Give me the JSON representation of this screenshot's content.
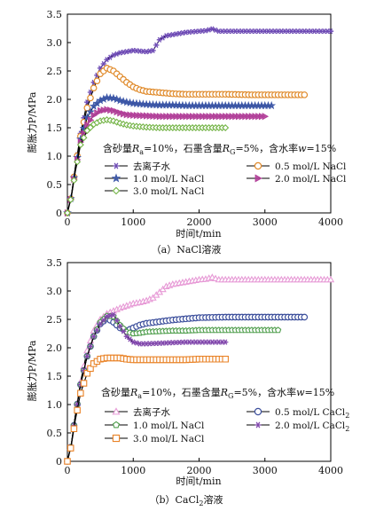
{
  "colors": {
    "deion_a": "#6e4bb5",
    "nacl05_a": "#e08a2a",
    "nacl10_a": "#3c57a8",
    "nacl20_a": "#b3409a",
    "nacl30_a": "#74b447",
    "deion_b": "#e79ad6",
    "cacl05_b": "#3c4f9c",
    "nacl10_b": "#4f9e4c",
    "cacl20_b": "#8248ad",
    "nacl30_b": "#e98226",
    "black": "#000000"
  },
  "chart_data": [
    {
      "type": "line",
      "caption_prefix": "（a）",
      "caption": "NaCl溶液",
      "xlabel": "时间t/min",
      "ylabel": "膨胀力P/MPa",
      "xlim": [
        0,
        4000
      ],
      "ylim": [
        0,
        3.5
      ],
      "xticks": [
        "0",
        "1000",
        "2000",
        "3000",
        "4000"
      ],
      "yticks": [
        "0",
        "0.5",
        "1.0",
        "1.5",
        "2.0",
        "2.5",
        "3.0",
        "3.5"
      ],
      "grid": false,
      "annotation": "含砂量Ra=10%，石墨含量RG=5%，含水率w=15%",
      "legend": [
        {
          "label": "去离子水",
          "marker": "star",
          "color": "#6e4bb5"
        },
        {
          "label": "0.5 mol/L NaCl",
          "marker": "circle",
          "color": "#e08a2a"
        },
        {
          "label": "1.0 mol/L NaCl",
          "marker": "star5",
          "color": "#3c57a8"
        },
        {
          "label": "2.0 mol/L NaCl",
          "marker": "tri-right",
          "color": "#b3409a"
        },
        {
          "label": "3.0 mol/L NaCl",
          "marker": "diamond",
          "color": "#74b447"
        }
      ],
      "series": [
        {
          "name": "去离子水",
          "x": [
            0,
            60,
            120,
            200,
            300,
            400,
            500,
            600,
            700,
            800,
            900,
            1000,
            1100,
            1200,
            1300,
            1400,
            1500,
            1600,
            1700,
            1800,
            1900,
            2000,
            2100,
            2200,
            2300,
            2500,
            2800,
            3200,
            3600,
            4000
          ],
          "y": [
            0,
            0.3,
            0.8,
            1.4,
            1.95,
            2.3,
            2.55,
            2.7,
            2.78,
            2.82,
            2.84,
            2.86,
            2.85,
            2.84,
            2.86,
            3.05,
            3.12,
            3.14,
            3.16,
            3.18,
            3.19,
            3.2,
            3.21,
            3.24,
            3.2,
            3.2,
            3.2,
            3.2,
            3.2,
            3.2
          ]
        },
        {
          "name": "0.5 mol/L NaCl",
          "x": [
            0,
            60,
            120,
            200,
            300,
            400,
            500,
            600,
            700,
            800,
            900,
            1000,
            1100,
            1200,
            1400,
            1600,
            1800,
            2000,
            2400,
            2800,
            3200,
            3600
          ],
          "y": [
            0,
            0.3,
            0.8,
            1.35,
            1.85,
            2.2,
            2.45,
            2.55,
            2.5,
            2.4,
            2.3,
            2.22,
            2.17,
            2.14,
            2.12,
            2.1,
            2.09,
            2.09,
            2.09,
            2.08,
            2.08,
            2.08
          ]
        },
        {
          "name": "1.0 mol/L NaCl",
          "x": [
            0,
            60,
            120,
            200,
            300,
            400,
            500,
            600,
            700,
            800,
            900,
            1000,
            1200,
            1400,
            1600,
            1800,
            2000,
            2400,
            2800,
            3100
          ],
          "y": [
            0,
            0.3,
            0.78,
            1.3,
            1.68,
            1.88,
            1.98,
            2.03,
            2.02,
            1.98,
            1.95,
            1.93,
            1.91,
            1.9,
            1.9,
            1.89,
            1.89,
            1.89,
            1.89,
            1.89
          ]
        },
        {
          "name": "2.0 mol/L NaCl",
          "x": [
            0,
            60,
            120,
            200,
            300,
            400,
            500,
            600,
            700,
            800,
            900,
            1000,
            1200,
            1400,
            1600,
            1800,
            2000,
            2400,
            2800,
            3000
          ],
          "y": [
            0,
            0.28,
            0.75,
            1.25,
            1.55,
            1.72,
            1.8,
            1.82,
            1.8,
            1.76,
            1.73,
            1.72,
            1.71,
            1.7,
            1.7,
            1.7,
            1.7,
            1.7,
            1.7,
            1.7
          ]
        },
        {
          "name": "3.0 mol/L NaCl",
          "x": [
            0,
            60,
            120,
            200,
            300,
            400,
            500,
            600,
            700,
            800,
            900,
            1000,
            1200,
            1400,
            1600,
            1800,
            2000,
            2200,
            2400
          ],
          "y": [
            0,
            0.28,
            0.72,
            1.2,
            1.45,
            1.56,
            1.62,
            1.64,
            1.62,
            1.58,
            1.55,
            1.53,
            1.51,
            1.5,
            1.5,
            1.5,
            1.5,
            1.5,
            1.5
          ]
        }
      ]
    },
    {
      "type": "line",
      "caption_prefix": "（b）",
      "caption": "CaCl2溶液",
      "xlabel": "时间t/min",
      "ylabel": "膨胀力P/MPa",
      "xlim": [
        0,
        4000
      ],
      "ylim": [
        0,
        3.5
      ],
      "xticks": [
        "0",
        "1000",
        "2000",
        "3000",
        "4000"
      ],
      "yticks": [
        "0",
        "0.5",
        "1.0",
        "1.5",
        "2.0",
        "2.5",
        "3.0",
        "3.5"
      ],
      "grid": false,
      "annotation": "含砂量Ra=10%，石墨含量RG=5%，含水率w=15%",
      "legend": [
        {
          "label": "去离子水",
          "marker": "tri-up",
          "color": "#e79ad6"
        },
        {
          "label": "0.5 mol/L CaCl2",
          "marker": "circle",
          "color": "#3c4f9c"
        },
        {
          "label": "1.0 mol/L NaCl",
          "marker": "pentagon",
          "color": "#4f9e4c"
        },
        {
          "label": "2.0 mol/L CaCl2",
          "marker": "star",
          "color": "#8248ad"
        },
        {
          "label": "3.0 mol/L NaCl",
          "marker": "square",
          "color": "#e98226"
        }
      ],
      "series": [
        {
          "name": "去离子水",
          "x": [
            0,
            60,
            120,
            200,
            300,
            400,
            500,
            600,
            700,
            800,
            900,
            1000,
            1100,
            1200,
            1300,
            1400,
            1500,
            1600,
            1700,
            1800,
            1900,
            2000,
            2100,
            2200,
            2300,
            2500,
            2800,
            3200,
            3600,
            4000
          ],
          "y": [
            0,
            0.3,
            0.8,
            1.4,
            1.95,
            2.3,
            2.5,
            2.6,
            2.65,
            2.7,
            2.74,
            2.78,
            2.8,
            2.83,
            2.88,
            2.98,
            3.08,
            3.12,
            3.14,
            3.16,
            3.18,
            3.2,
            3.21,
            3.24,
            3.2,
            3.2,
            3.2,
            3.2,
            3.2,
            3.2
          ]
        },
        {
          "name": "0.5 mol/L CaCl2",
          "x": [
            0,
            60,
            120,
            200,
            300,
            400,
            500,
            600,
            700,
            800,
            900,
            1000,
            1100,
            1200,
            1400,
            1600,
            1800,
            2000,
            2400,
            2800,
            3200,
            3600
          ],
          "y": [
            0,
            0.3,
            0.8,
            1.35,
            1.85,
            2.2,
            2.42,
            2.52,
            2.45,
            2.35,
            2.3,
            2.35,
            2.4,
            2.43,
            2.46,
            2.49,
            2.51,
            2.53,
            2.54,
            2.54,
            2.54,
            2.54
          ]
        },
        {
          "name": "1.0 mol/L NaCl",
          "x": [
            0,
            60,
            120,
            200,
            300,
            400,
            500,
            600,
            700,
            800,
            900,
            1000,
            1100,
            1200,
            1400,
            1600,
            1800,
            2000,
            2400,
            2800,
            3200
          ],
          "y": [
            0,
            0.3,
            0.8,
            1.35,
            1.85,
            2.2,
            2.45,
            2.56,
            2.55,
            2.4,
            2.28,
            2.25,
            2.26,
            2.28,
            2.29,
            2.3,
            2.3,
            2.31,
            2.31,
            2.31,
            2.31
          ]
        },
        {
          "name": "2.0 mol/L CaCl2",
          "x": [
            0,
            60,
            120,
            200,
            300,
            400,
            500,
            600,
            700,
            800,
            900,
            1000,
            1100,
            1200,
            1400,
            1600,
            1800,
            2000,
            2200,
            2400
          ],
          "y": [
            0,
            0.3,
            0.8,
            1.35,
            1.85,
            2.2,
            2.42,
            2.55,
            2.58,
            2.38,
            2.2,
            2.1,
            2.07,
            2.07,
            2.08,
            2.09,
            2.1,
            2.1,
            2.1,
            2.1
          ]
        },
        {
          "name": "3.0 mol/L NaCl",
          "x": [
            0,
            60,
            120,
            200,
            300,
            400,
            500,
            600,
            700,
            800,
            900,
            1000,
            1200,
            1400,
            1600,
            1800,
            2000,
            2200,
            2400
          ],
          "y": [
            0,
            0.28,
            0.72,
            1.2,
            1.55,
            1.72,
            1.8,
            1.82,
            1.82,
            1.82,
            1.8,
            1.79,
            1.79,
            1.79,
            1.79,
            1.79,
            1.8,
            1.8,
            1.8
          ]
        }
      ]
    }
  ]
}
